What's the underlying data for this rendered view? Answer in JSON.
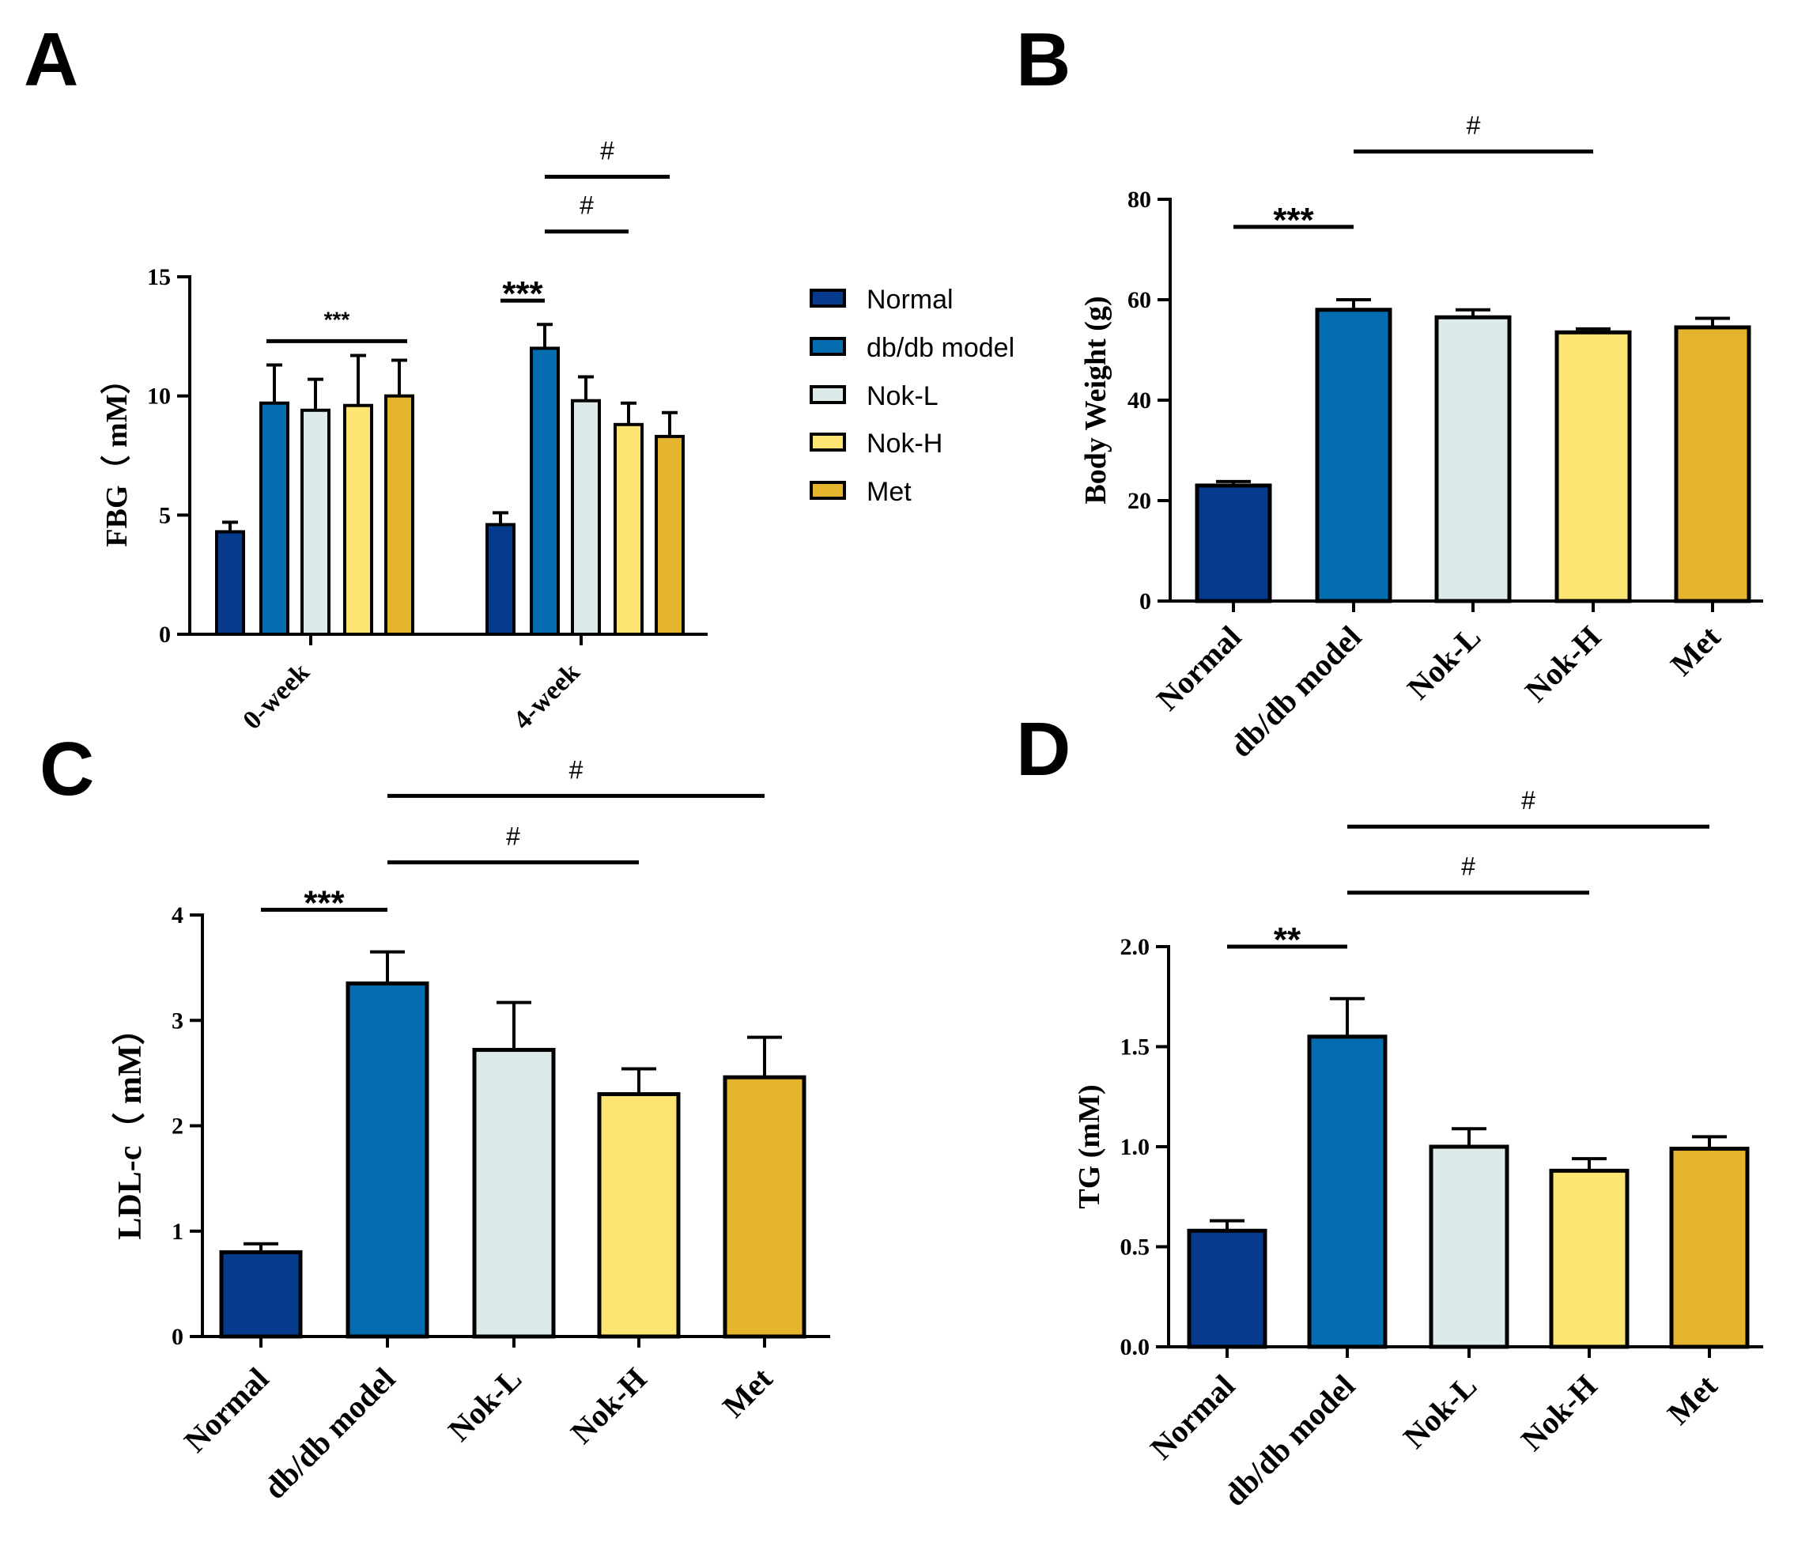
{
  "colors": {
    "Normal": "#063a8c",
    "db/db model": "#036db0",
    "Nok-L": "#dcebea",
    "Nok-H": "#fce572",
    "Met": "#e4b42f",
    "axis": "#000000"
  },
  "legend": {
    "items": [
      {
        "label": "Normal",
        "color": "#063a8c"
      },
      {
        "label": "db/db model",
        "color": "#036db0"
      },
      {
        "label": "Nok-L",
        "color": "#dcebea"
      },
      {
        "label": "Nok-H",
        "color": "#fce572"
      },
      {
        "label": "Met",
        "color": "#e4b42f"
      }
    ]
  },
  "chart_data": [
    {
      "panel": "A",
      "type": "bar",
      "ylabel": "FBG（ mM）",
      "ylim": [
        0,
        15
      ],
      "yticks": [
        "0",
        "5",
        "10",
        "15"
      ],
      "categories": [
        "0-week",
        "4-week"
      ],
      "series": [
        {
          "name": "Normal",
          "values": [
            4.3,
            4.6
          ],
          "errors": [
            0.4,
            0.5
          ]
        },
        {
          "name": "db/db model",
          "values": [
            9.7,
            12.0
          ],
          "errors": [
            1.6,
            1.0
          ]
        },
        {
          "name": "Nok-L",
          "values": [
            9.4,
            9.8
          ],
          "errors": [
            1.3,
            1.0
          ]
        },
        {
          "name": "Nok-H",
          "values": [
            9.6,
            8.8
          ],
          "errors": [
            2.1,
            0.9
          ]
        },
        {
          "name": "Met",
          "values": [
            10.0,
            8.3
          ],
          "errors": [
            1.5,
            1.0
          ]
        }
      ],
      "annotations": [
        {
          "label": "***",
          "group": 0,
          "from": 1,
          "to": 4,
          "y": 12.3,
          "style": "small"
        },
        {
          "label": "***",
          "group": 1,
          "from": 0,
          "to": 1,
          "y": 14.0,
          "style": "big"
        },
        {
          "label": "#",
          "group": 1,
          "from": 1,
          "to": 3,
          "y": 16.9,
          "style": "hash"
        },
        {
          "label": "#",
          "group": 1,
          "from": 1,
          "to": 4,
          "y": 19.2,
          "style": "hash"
        }
      ]
    },
    {
      "panel": "B",
      "type": "bar",
      "ylabel": "Body Weight (g)",
      "ylim": [
        0,
        80
      ],
      "yticks": [
        "0",
        "20",
        "40",
        "60",
        "80"
      ],
      "categories": [
        "Normal",
        "db/db model",
        "Nok-L",
        "Nok-H",
        "Met"
      ],
      "values": [
        23.0,
        58.0,
        56.5,
        53.5,
        54.5
      ],
      "errors": [
        0.8,
        2.0,
        1.5,
        0.7,
        1.8
      ],
      "annotations": [
        {
          "label": "***",
          "from": 0,
          "to": 1,
          "y": 74.5,
          "style": "big"
        },
        {
          "label": "#",
          "from": 1,
          "to": 3,
          "y": 89.5,
          "style": "hash"
        }
      ]
    },
    {
      "panel": "C",
      "type": "bar",
      "ylabel": "LDL-c（ mM）",
      "ylim": [
        0,
        4
      ],
      "yticks": [
        "0",
        "1",
        "2",
        "3",
        "4"
      ],
      "categories": [
        "Normal",
        "db/db model",
        "Nok-L",
        "Nok-H",
        "Met"
      ],
      "values": [
        0.8,
        3.35,
        2.72,
        2.3,
        2.46
      ],
      "errors": [
        0.08,
        0.3,
        0.45,
        0.24,
        0.38
      ],
      "annotations": [
        {
          "label": "***",
          "from": 0,
          "to": 1,
          "y": 4.05,
          "style": "big"
        },
        {
          "label": "#",
          "from": 1,
          "to": 3,
          "y": 4.5,
          "style": "hash"
        },
        {
          "label": "#",
          "from": 1,
          "to": 4,
          "y": 5.13,
          "style": "hash"
        }
      ]
    },
    {
      "panel": "D",
      "type": "bar",
      "ylabel": "TG (mM)",
      "ylim": [
        0,
        2.0
      ],
      "yticks": [
        "0.0",
        "0.5",
        "1.0",
        "1.5",
        "2.0"
      ],
      "categories": [
        "Normal",
        "db/db model",
        "Nok-L",
        "Nok-H",
        "Met"
      ],
      "values": [
        0.58,
        1.55,
        1.0,
        0.88,
        0.99
      ],
      "errors": [
        0.05,
        0.19,
        0.09,
        0.06,
        0.06
      ],
      "annotations": [
        {
          "label": "**",
          "from": 0,
          "to": 1,
          "y": 2.0,
          "style": "big"
        },
        {
          "label": "#",
          "from": 1,
          "to": 3,
          "y": 2.27,
          "style": "hash"
        },
        {
          "label": "#",
          "from": 1,
          "to": 4,
          "y": 2.6,
          "style": "hash"
        }
      ]
    }
  ],
  "panels": [
    {
      "letter": "A"
    },
    {
      "letter": "B"
    },
    {
      "letter": "C"
    },
    {
      "letter": "D"
    }
  ]
}
